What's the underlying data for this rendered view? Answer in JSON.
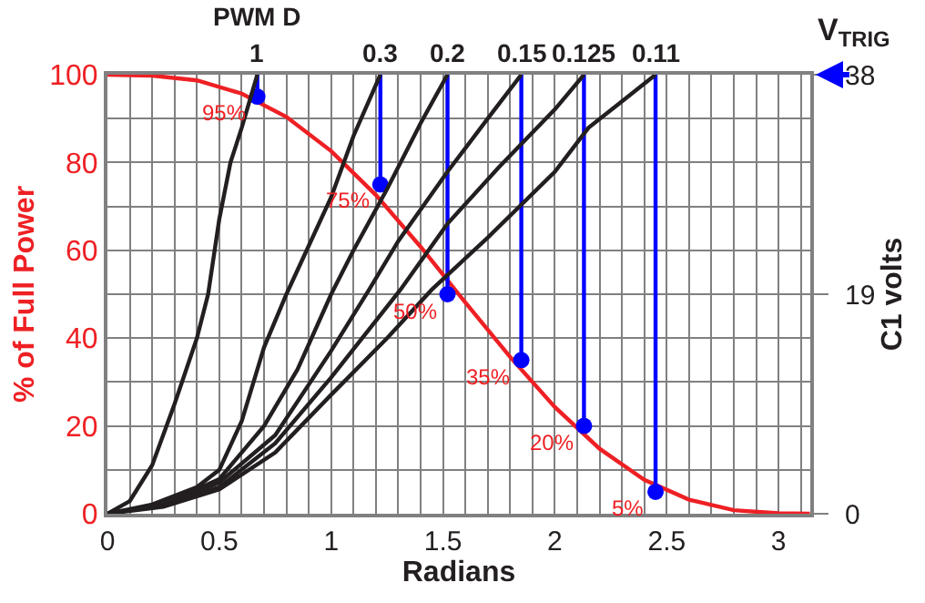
{
  "chart_data": {
    "type": "line",
    "xlabel": "Radians",
    "ylabel": "% of Full Power",
    "y2label": "C1 volts",
    "annotations": [
      "PWM D",
      "V$_{TRIG}$",
      {
        "text": "1",
        "x": 0.67,
        "y": 100
      },
      {
        "text": "0.3",
        "x": 1.22,
        "y": 100
      },
      {
        "text": "0.2",
        "x": 1.52,
        "y": 100
      },
      {
        "text": "0.15",
        "x": 1.85,
        "y": 100
      },
      {
        "text": "0.125",
        "x": 2.13,
        "y": 100
      },
      {
        "text": "0.11",
        "x": 2.45,
        "y": 100
      }
    ],
    "xlim": [
      0,
      3.1416
    ],
    "xticks": [
      0,
      0.5,
      1,
      1.5,
      2,
      2.5,
      3
    ],
    "ylim": [
      0,
      100
    ],
    "yticks": [
      0,
      20,
      40,
      60,
      80,
      100
    ],
    "y2lim": [
      0,
      38
    ],
    "y2ticks": [
      0,
      19,
      38
    ],
    "grid": true,
    "series": [
      {
        "color": "#ee2024",
        "x": [
          0,
          0.2,
          0.4,
          0.6,
          0.8,
          1.0,
          1.2,
          1.4,
          1.6,
          1.8,
          2.0,
          2.2,
          2.4,
          2.6,
          2.8,
          3.0,
          3.14
        ],
        "values": [
          100,
          99.8,
          98.7,
          95.7,
          90.4,
          82.6,
          72.6,
          60.8,
          48.1,
          35.7,
          24.3,
          14.8,
          7.7,
          3.2,
          0.8,
          0.1,
          0
        ]
      },
      {
        "color": "#231f20",
        "axis": "y2",
        "x": [
          0,
          0.1,
          0.2,
          0.3,
          0.4,
          0.45,
          0.5,
          0.55,
          0.6,
          0.67
        ],
        "values": [
          0,
          1.1,
          4.2,
          9.5,
          15.2,
          19,
          25.5,
          30.4,
          33.4,
          38
        ]
      },
      {
        "color": "#231f20",
        "axis": "y2",
        "x": [
          0,
          0.2,
          0.4,
          0.5,
          0.6,
          0.7,
          0.8,
          0.9,
          1.0,
          1.1,
          1.22
        ],
        "values": [
          0,
          0.8,
          2.3,
          3.8,
          8,
          14.4,
          19,
          23.2,
          27.4,
          32.7,
          38
        ]
      },
      {
        "color": "#231f20",
        "axis": "y2",
        "x": [
          0,
          0.25,
          0.5,
          0.7,
          0.85,
          1.0,
          1.1,
          1.25,
          1.4,
          1.52
        ],
        "values": [
          0,
          0.8,
          3,
          7.6,
          12.5,
          19,
          22.8,
          28.1,
          33.8,
          38
        ]
      },
      {
        "color": "#231f20",
        "axis": "y2",
        "x": [
          0,
          0.25,
          0.5,
          0.75,
          1.0,
          1.17,
          1.3,
          1.52,
          1.7,
          1.85
        ],
        "values": [
          0,
          0.8,
          2.7,
          6.8,
          14.1,
          19.4,
          23.6,
          29.6,
          34.2,
          38
        ]
      },
      {
        "color": "#231f20",
        "axis": "y2",
        "x": [
          0,
          0.25,
          0.5,
          0.75,
          1.0,
          1.31,
          1.52,
          1.75,
          2.0,
          2.13
        ],
        "values": [
          0,
          0.8,
          2.3,
          6.1,
          11.8,
          19.4,
          25.1,
          30,
          35,
          38
        ]
      },
      {
        "color": "#231f20",
        "axis": "y2",
        "x": [
          0,
          0.25,
          0.5,
          0.75,
          1.0,
          1.25,
          1.45,
          1.7,
          2.0,
          2.15,
          2.3,
          2.45
        ],
        "values": [
          0,
          0.6,
          2.1,
          5.3,
          10.3,
          15.2,
          19.4,
          23.9,
          29.6,
          33.4,
          35.7,
          38
        ]
      },
      {
        "color": "#0000ff",
        "x": [
          0.67,
          0.67
        ],
        "values": [
          100,
          95
        ]
      },
      {
        "color": "#0000ff",
        "x": [
          1.22,
          1.22
        ],
        "values": [
          100,
          75
        ]
      },
      {
        "color": "#0000ff",
        "x": [
          1.52,
          1.52
        ],
        "values": [
          100,
          50
        ]
      },
      {
        "color": "#0000ff",
        "x": [
          1.85,
          1.85
        ],
        "values": [
          100,
          35
        ]
      },
      {
        "color": "#0000ff",
        "x": [
          2.13,
          2.13
        ],
        "values": [
          100,
          20
        ]
      },
      {
        "color": "#0000ff",
        "x": [
          2.45,
          2.45
        ],
        "values": [
          100,
          5
        ]
      },
      {
        "type": "scatter",
        "color": "#0000ff",
        "marker": "circle",
        "x": [
          0.67,
          1.22,
          1.52,
          1.85,
          2.13,
          2.45
        ],
        "values": [
          95,
          75,
          50,
          35,
          20,
          5
        ],
        "value_labels": [
          "95%",
          "75%",
          "50%",
          "35%",
          "20%",
          "5%"
        ]
      }
    ]
  }
}
